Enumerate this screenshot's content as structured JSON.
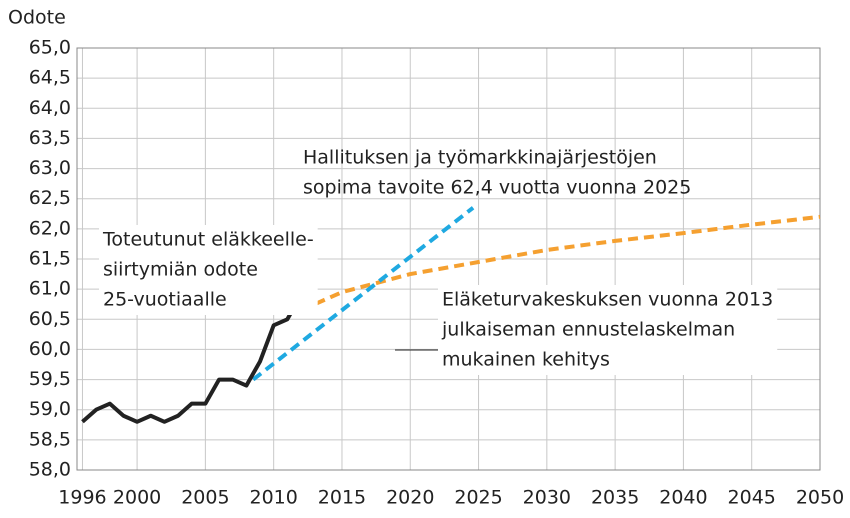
{
  "chart_data": {
    "type": "line",
    "y_label": "Odote",
    "xlim": [
      1995.6,
      2050
    ],
    "xticks": [
      1996,
      2000,
      2005,
      2010,
      2015,
      2020,
      2025,
      2030,
      2035,
      2040,
      2045,
      2050
    ],
    "ylim": [
      58,
      65
    ],
    "yticks": [
      {
        "value": 58,
        "label": "58,0"
      },
      {
        "value": 58.5,
        "label": "58,5"
      },
      {
        "value": 59,
        "label": "59,0"
      },
      {
        "value": 59.5,
        "label": "59,5"
      },
      {
        "value": 60,
        "label": "60,0"
      },
      {
        "value": 60.5,
        "label": "60,5"
      },
      {
        "value": 61,
        "label": "61,0"
      },
      {
        "value": 61.5,
        "label": "61,5"
      },
      {
        "value": 62,
        "label": "62,0"
      },
      {
        "value": 62.5,
        "label": "62,5"
      },
      {
        "value": 63,
        "label": "63,0"
      },
      {
        "value": 63.5,
        "label": "63,5"
      },
      {
        "value": 64,
        "label": "64,0"
      },
      {
        "value": 64.5,
        "label": "64,5"
      },
      {
        "value": 65,
        "label": "65,0"
      }
    ],
    "grid": true,
    "series": [
      {
        "color": "#f5a030",
        "dashed": true,
        "x": [
          2012,
          2013,
          2015,
          2020,
          2025,
          2030,
          2035,
          2040,
          2045,
          2050
        ],
        "values": [
          60.85,
          60.75,
          60.95,
          61.25,
          61.45,
          61.65,
          61.8,
          61.93,
          62.07,
          62.2
        ]
      },
      {
        "color": "#1fa9e1",
        "dashed": true,
        "x": [
          2008.5,
          2024.6
        ],
        "values": [
          59.5,
          62.35
        ]
      },
      {
        "color": "#222222",
        "dashed": false,
        "x": [
          1996,
          1997,
          1998,
          1999,
          2000,
          2001,
          2002,
          2003,
          2004,
          2005,
          2006,
          2007,
          2008,
          2009,
          2010,
          2011,
          2012,
          2013
        ],
        "values": [
          58.8,
          59.0,
          59.1,
          58.9,
          58.8,
          58.9,
          58.8,
          58.9,
          59.1,
          59.1,
          59.5,
          59.5,
          59.4,
          59.8,
          60.4,
          60.5,
          60.9,
          60.9
        ]
      }
    ],
    "annotations": [
      {
        "lines": [
          "Hallituksen ja työmarkkinajärjestöjen",
          "sopima tavoite 62,4 vuotta vuonna 2025"
        ]
      },
      {
        "lines": [
          "Toteutunut eläkkeelle-",
          "siirtymiän odote",
          "25-vuotiaalle"
        ]
      },
      {
        "lines": [
          "Eläketurvakeskuksen vuonna 2013",
          "julkaiseman ennustelaskelman",
          "mukainen kehitys"
        ]
      }
    ]
  }
}
